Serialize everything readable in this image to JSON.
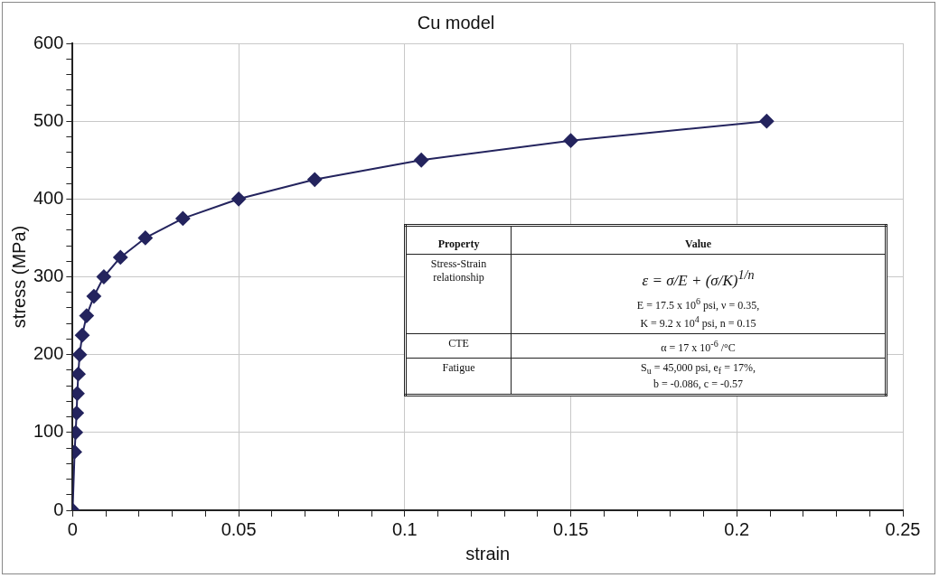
{
  "chart_data": {
    "type": "line",
    "title": "Cu model",
    "xlabel": "strain",
    "ylabel": "stress (MPa)",
    "series": [
      {
        "color": "#24245e",
        "x": [
          0,
          0.0006,
          0.0009,
          0.0012,
          0.0014,
          0.0017,
          0.0021,
          0.0029,
          0.0042,
          0.0064,
          0.0094,
          0.0144,
          0.0219,
          0.0332,
          0.05,
          0.0729,
          0.105,
          0.15,
          0.209
        ],
        "values": [
          0,
          75,
          100,
          125,
          150,
          175,
          200,
          225,
          250,
          275,
          300,
          325,
          350,
          375,
          400,
          425,
          450,
          475,
          500
        ]
      }
    ],
    "xlim": [
      0,
      0.25
    ],
    "xticks": [
      0,
      {
        "value": 0.01,
        "label": null
      },
      {
        "value": 0.02,
        "label": null
      },
      {
        "value": 0.03,
        "label": null
      },
      {
        "value": 0.04,
        "label": null
      },
      0.05,
      {
        "value": 0.06,
        "label": null
      },
      {
        "value": 0.07,
        "label": null
      },
      {
        "value": 0.08,
        "label": null
      },
      {
        "value": 0.09,
        "label": null
      },
      0.1,
      {
        "value": 0.11,
        "label": null
      },
      {
        "value": 0.12,
        "label": null
      },
      {
        "value": 0.13,
        "label": null
      },
      {
        "value": 0.14,
        "label": null
      },
      0.15,
      {
        "value": 0.16,
        "label": null
      },
      {
        "value": 0.17,
        "label": null
      },
      {
        "value": 0.18,
        "label": null
      },
      {
        "value": 0.19,
        "label": null
      },
      0.2,
      {
        "value": 0.21,
        "label": null
      },
      {
        "value": 0.22,
        "label": null
      },
      {
        "value": 0.23,
        "label": null
      },
      {
        "value": 0.24,
        "label": null
      },
      0.25
    ],
    "ylim": [
      0,
      600
    ],
    "yticks": [
      0,
      {
        "value": 20,
        "label": null
      },
      {
        "value": 40,
        "label": null
      },
      {
        "value": 60,
        "label": null
      },
      {
        "value": 80,
        "label": null
      },
      100,
      {
        "value": 120,
        "label": null
      },
      {
        "value": 140,
        "label": null
      },
      {
        "value": 160,
        "label": null
      },
      {
        "value": 180,
        "label": null
      },
      200,
      {
        "value": 220,
        "label": null
      },
      {
        "value": 240,
        "label": null
      },
      {
        "value": 260,
        "label": null
      },
      {
        "value": 280,
        "label": null
      },
      300,
      {
        "value": 320,
        "label": null
      },
      {
        "value": 340,
        "label": null
      },
      {
        "value": 360,
        "label": null
      },
      {
        "value": 380,
        "label": null
      },
      400,
      {
        "value": 420,
        "label": null
      },
      {
        "value": 440,
        "label": null
      },
      {
        "value": 460,
        "label": null
      },
      {
        "value": 480,
        "label": null
      },
      500,
      {
        "value": 520,
        "label": null
      },
      {
        "value": 540,
        "label": null
      },
      {
        "value": 560,
        "label": null
      },
      {
        "value": 580,
        "label": null
      },
      600
    ],
    "grid": true,
    "legend": false,
    "marker": "diamond",
    "line_style": "solid",
    "annotations": [
      "Property",
      "Value",
      "Stress-Strain relationship",
      "ε = σ/E + (σ/K)$^{1/n}$",
      "E = 17.5 x 10$^{6}$ psi, ν = 0.35,",
      "K = 9.2 x 10$^{4}$ psi, n = 0.15",
      "CTE",
      "α = 17 x 10$^{-6}$ /°C",
      "Fatigue",
      "S$_{u}$ = 45,000 psi, e$_{f}$ = 17%,",
      "b = -0.086, c = -0.57"
    ]
  }
}
